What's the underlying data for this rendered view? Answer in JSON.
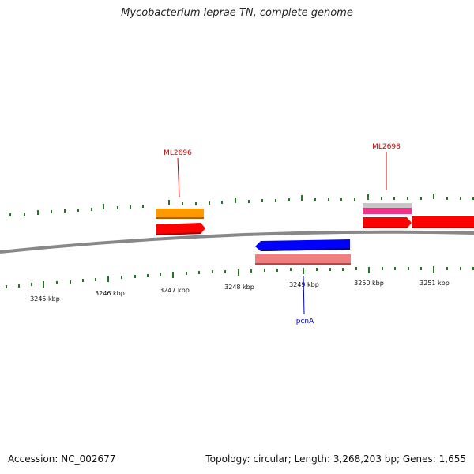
{
  "title": "Mycobacterium leprae TN, complete genome",
  "footer": {
    "accession": "Accession: NC_002677",
    "summary": "Topology: circular; Length: 3,268,203 bp; Genes: 1,655"
  },
  "tick_labels": [
    "3245 kbp",
    "3246 kbp",
    "3247 kbp",
    "3248 kbp",
    "3249 kbp",
    "3250 kbp",
    "3251 kbp"
  ],
  "gene_labels": {
    "ml2696": "ML2696",
    "ml2698": "ML2698",
    "pcna": "pcnA"
  },
  "colors": {
    "backbone": "#808080",
    "tick": "#1f7a1f",
    "cds_forward": "#ff0000",
    "cds_reverse": "#0000ff",
    "gene_orange": "#ff9900",
    "gene_pink": "#ee3388",
    "gene_gray": "#c8c8c8",
    "gene_salmon": "#f08080",
    "label_red": "#cc0000",
    "label_blue": "#0000cc"
  }
}
